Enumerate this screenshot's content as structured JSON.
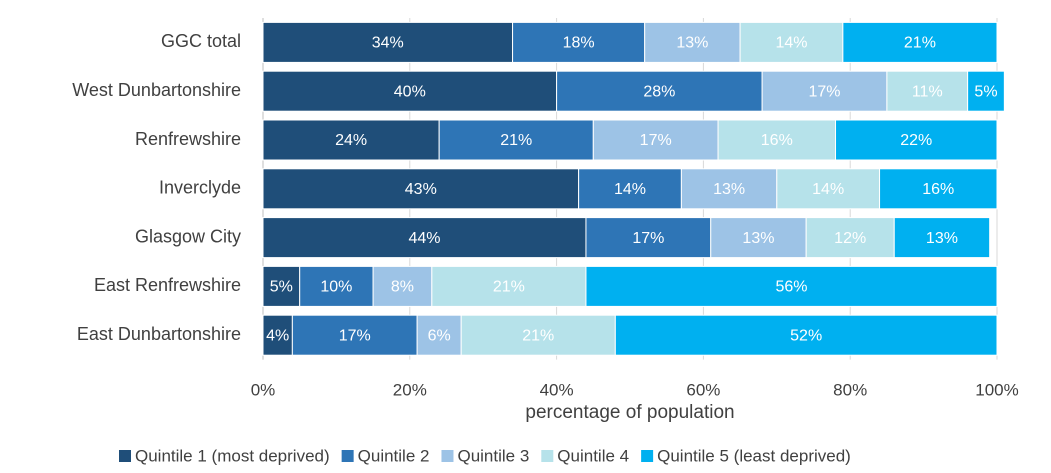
{
  "chart_data": {
    "type": "stacked_bar_horizontal",
    "x_label": "percentage of population",
    "categories": [
      "GGC total",
      "West Dunbartonshire",
      "Renfrewshire",
      "Inverclyde",
      "Glasgow City",
      "East Renfrewshire",
      "East Dunbartonshire"
    ],
    "series": [
      {
        "name": "Quintile 1 (most deprived)",
        "color": "#1f4e79",
        "values": [
          34,
          40,
          24,
          43,
          44,
          5,
          4
        ],
        "value_labels": [
          "34%",
          "40%",
          "24%",
          "43%",
          "44%",
          "5%",
          "4%"
        ]
      },
      {
        "name": "Quintile 2",
        "color": "#2e75b6",
        "values": [
          18,
          28,
          21,
          14,
          17,
          10,
          17
        ],
        "value_labels": [
          "18%",
          "28%",
          "21%",
          "14%",
          "17%",
          "10%",
          "17%"
        ]
      },
      {
        "name": "Quintile 3",
        "color": "#9dc3e6",
        "values": [
          13,
          17,
          17,
          13,
          13,
          8,
          6
        ],
        "value_labels": [
          "13%",
          "17%",
          "17%",
          "13%",
          "13%",
          "8%",
          "6%"
        ]
      },
      {
        "name": "Quintile 4",
        "color": "#b6e2ea",
        "values": [
          14,
          11,
          16,
          14,
          12,
          21,
          21
        ],
        "value_labels": [
          "14%",
          "11%",
          "16%",
          "14%",
          "12%",
          "21%",
          "21%"
        ]
      },
      {
        "name": "Quintile 5 (least deprived)",
        "color": "#00b0f0",
        "values": [
          21,
          5,
          22,
          16,
          13,
          56,
          52
        ],
        "value_labels": [
          "21%",
          "5%",
          "22%",
          "16%",
          "13%",
          "56%",
          "52%"
        ]
      }
    ],
    "xlim": [
      0,
      100
    ],
    "xticks": [
      {
        "value": 0,
        "label": "0%"
      },
      {
        "value": 20,
        "label": "20%"
      },
      {
        "value": 40,
        "label": "40%"
      },
      {
        "value": 60,
        "label": "60%"
      },
      {
        "value": 80,
        "label": "80%"
      },
      {
        "value": 100,
        "label": "100%"
      }
    ],
    "grid": true,
    "legend": "bottom"
  }
}
